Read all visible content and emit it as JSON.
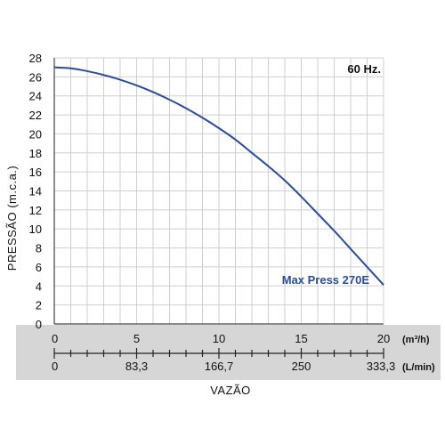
{
  "chart_data": {
    "type": "line",
    "ylabel": "PRESSÃO (m.c.a.)",
    "xlabel": "VAZÃO",
    "ylim": [
      0,
      28
    ],
    "xlim": [
      0,
      20
    ],
    "grid": true,
    "y_ticks": [
      "0",
      "2",
      "4",
      "6",
      "8",
      "10",
      "12",
      "14",
      "16",
      "18",
      "20",
      "22",
      "24",
      "26",
      "28"
    ],
    "x_ticks_primary": [
      "0",
      "5",
      "10",
      "15",
      "20"
    ],
    "x_unit_primary": "(m³/h)",
    "x_ticks_secondary": [
      "0",
      "83,3",
      "166,7",
      "250",
      "333,3"
    ],
    "x_unit_secondary": "(L/min)",
    "annotation": "60 Hz.",
    "series": [
      {
        "name": "Max Press 270E",
        "color": "#2b4c9b",
        "x": [
          0,
          1,
          2,
          3,
          4,
          5,
          6,
          7,
          8,
          9,
          10,
          11,
          12,
          13,
          14,
          15,
          16,
          17,
          18,
          19,
          20
        ],
        "y": [
          27.0,
          26.9,
          26.6,
          26.2,
          25.7,
          25.1,
          24.4,
          23.6,
          22.7,
          21.7,
          20.6,
          19.4,
          18.0,
          16.6,
          15.1,
          13.4,
          11.6,
          9.8,
          7.9,
          6.0,
          4.1
        ]
      }
    ]
  }
}
